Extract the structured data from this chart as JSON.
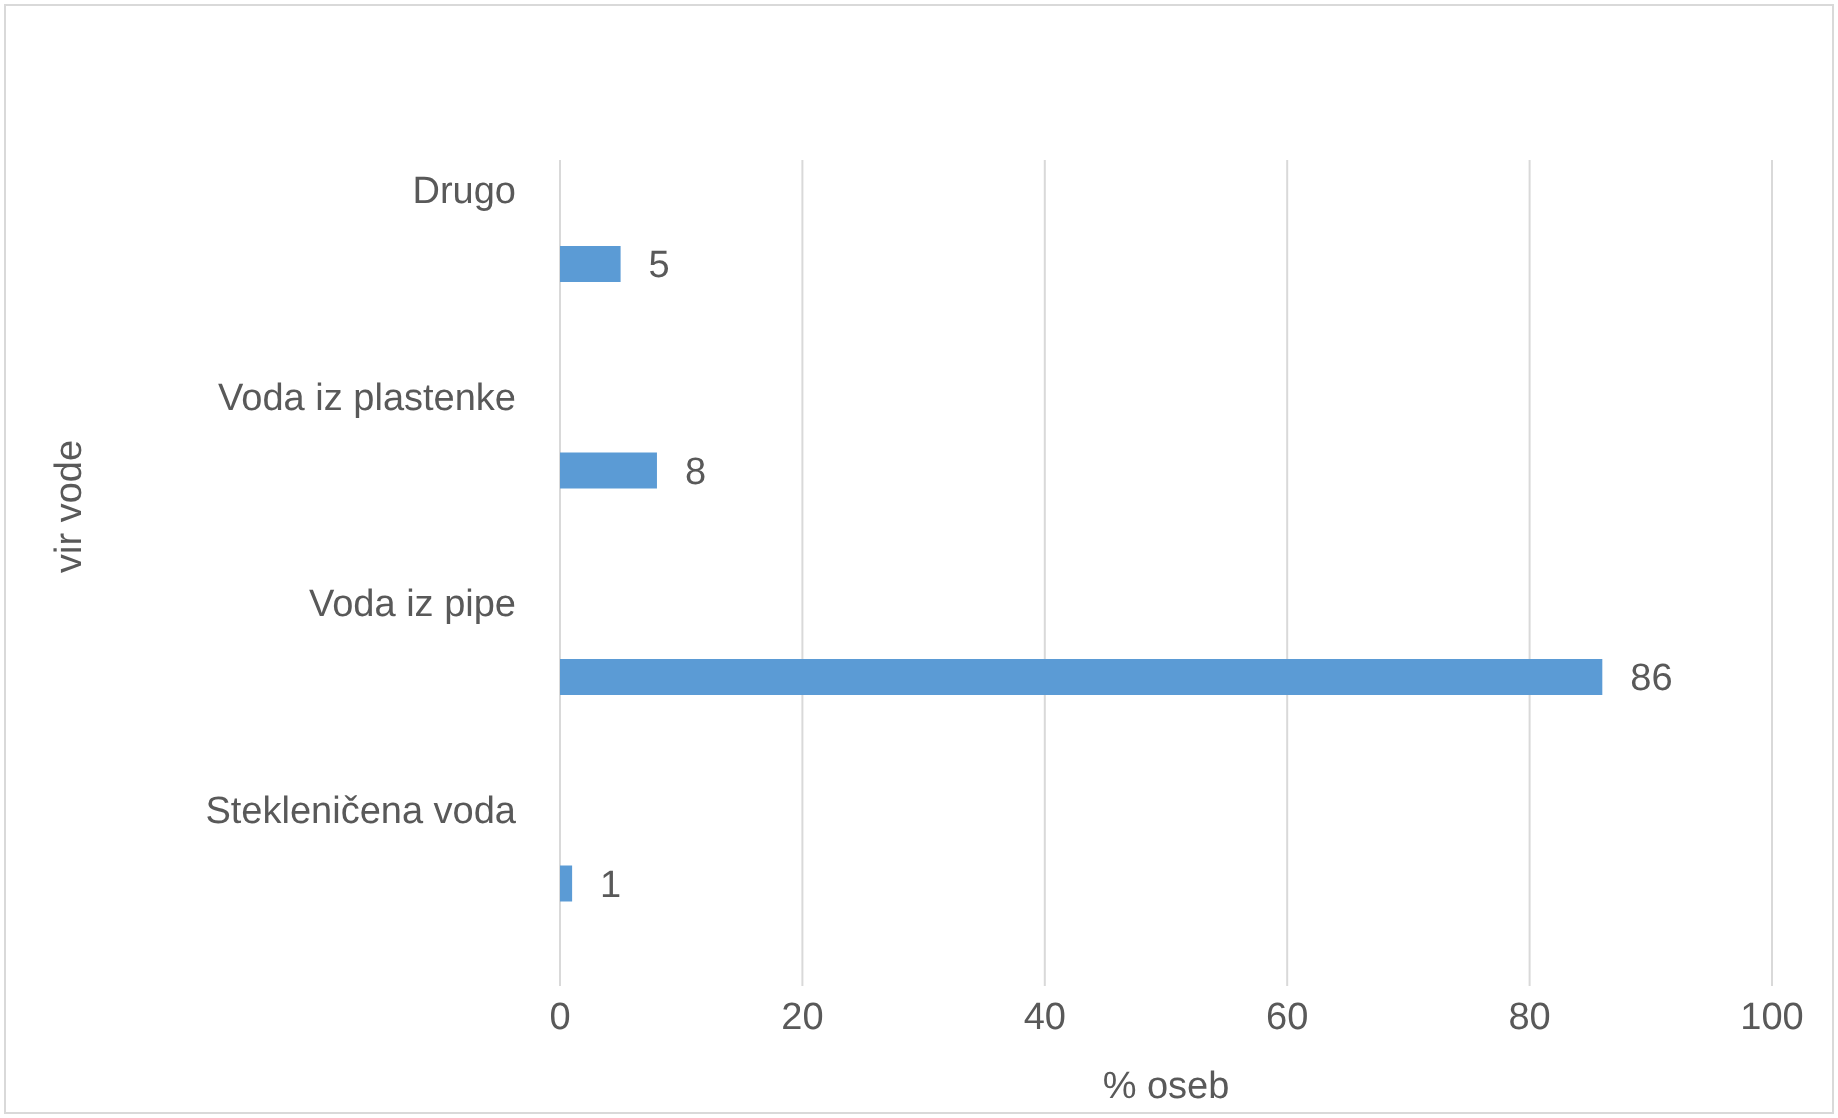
{
  "chart_data": {
    "type": "bar",
    "orientation": "horizontal",
    "xlabel": "% oseb",
    "ylabel": "vir vode",
    "categories": [
      "Drugo",
      "Voda iz plastenke",
      "Voda iz pipe",
      "Stekleničena voda"
    ],
    "values": [
      5,
      8,
      86,
      1
    ],
    "color": "#5b9bd5",
    "xlim": [
      0,
      100
    ],
    "xticks": [
      0,
      20,
      40,
      60,
      80,
      100
    ],
    "grid": "x",
    "data_labels": true
  }
}
